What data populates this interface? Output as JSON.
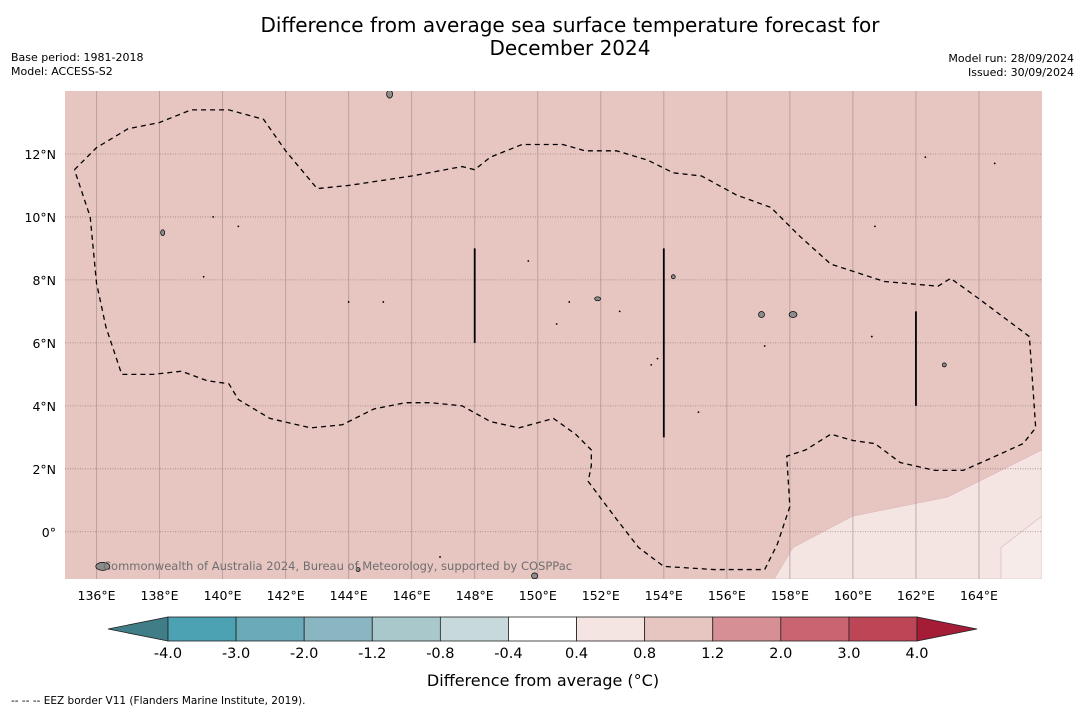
{
  "title_line1": "Difference from average sea surface temperature forecast for",
  "title_line2": "December 2024",
  "meta_left": {
    "base_period": "Base period: 1981-2018",
    "model": "Model: ACCESS-S2"
  },
  "meta_right": {
    "model_run": "Model run: 28/09/2024",
    "issued": "Issued: 30/09/2024"
  },
  "attribution": "Commonwealth of Australia 2024, Bureau of Meteorology, supported by COSPPac",
  "footer_note": "--  --  -- EEZ border V11 (Flanders Marine Institute, 2019).",
  "colorbar_label": "Difference from average (°C)",
  "colors": {
    "ocean_fill": "#e7c5c1",
    "warm_band_fill": "#f4e4e2",
    "land": "#8c8c8c",
    "colorbar": [
      "#3f7e86",
      "#4ca2b2",
      "#6aaab9",
      "#89b6c0",
      "#a9c8cc",
      "#c8d9dc",
      "#ffffff",
      "#f4e4e2",
      "#e7c5c1",
      "#d68f95",
      "#c96570",
      "#bd4656",
      "#a51c36"
    ]
  },
  "chart_data": {
    "type": "heatmap",
    "map_extent": {
      "lon": [
        135,
        166
      ],
      "lat": [
        -1.5,
        14
      ]
    },
    "x_ticks": [
      "136°E",
      "138°E",
      "140°E",
      "142°E",
      "144°E",
      "146°E",
      "148°E",
      "150°E",
      "152°E",
      "154°E",
      "156°E",
      "158°E",
      "160°E",
      "162°E",
      "164°E"
    ],
    "x_tick_values": [
      136,
      138,
      140,
      142,
      144,
      146,
      148,
      150,
      152,
      154,
      156,
      158,
      160,
      162,
      164
    ],
    "y_ticks": [
      "12°N",
      "10°N",
      "8°N",
      "6°N",
      "4°N",
      "2°N",
      "0°"
    ],
    "y_tick_values": [
      12,
      10,
      8,
      6,
      4,
      2,
      0
    ],
    "grid": true,
    "colorbar_ticks": [
      "-4.0",
      "-3.0",
      "-2.0",
      "-1.2",
      "-0.8",
      "-0.4",
      "0.4",
      "0.8",
      "1.2",
      "2.0",
      "3.0",
      "4.0"
    ],
    "colorbar_levels": [
      -4.0,
      -3.0,
      -2.0,
      -1.2,
      -0.8,
      -0.4,
      0.4,
      0.8,
      1.2,
      2.0,
      3.0,
      4.0
    ],
    "dominant_category": "0.8 to 1.2",
    "secondary_category": "0.4 to 0.8 (south-east corner)",
    "eez_border": [
      [
        135.3,
        11.5
      ],
      [
        136,
        12.2
      ],
      [
        137,
        12.8
      ],
      [
        138,
        13
      ],
      [
        139,
        13.4
      ],
      [
        140.2,
        13.4
      ],
      [
        141.3,
        13.1
      ],
      [
        142,
        12.1
      ],
      [
        143,
        10.9
      ],
      [
        144,
        11
      ],
      [
        146,
        11.3
      ],
      [
        147.6,
        11.6
      ],
      [
        148,
        11.5
      ],
      [
        148.5,
        11.9
      ],
      [
        149.5,
        12.3
      ],
      [
        150.8,
        12.3
      ],
      [
        151.5,
        12.1
      ],
      [
        152.5,
        12.1
      ],
      [
        153.5,
        11.8
      ],
      [
        154.3,
        11.4
      ],
      [
        155.2,
        11.3
      ],
      [
        156.3,
        10.7
      ],
      [
        157.4,
        10.3
      ],
      [
        158.3,
        9.4
      ],
      [
        159.3,
        8.5
      ],
      [
        161,
        7.95
      ],
      [
        162.7,
        7.8
      ],
      [
        163.1,
        8.05
      ],
      [
        164,
        7.4
      ],
      [
        165.6,
        6.2
      ],
      [
        165.8,
        3.3
      ],
      [
        165.4,
        2.8
      ],
      [
        164.3,
        2.3
      ],
      [
        163.5,
        1.95
      ],
      [
        162.6,
        1.95
      ],
      [
        161.5,
        2.2
      ],
      [
        160.7,
        2.8
      ],
      [
        160,
        2.9
      ],
      [
        159.3,
        3.1
      ],
      [
        158.5,
        2.6
      ],
      [
        157.9,
        2.4
      ],
      [
        158,
        0.8
      ],
      [
        157.6,
        -0.4
      ],
      [
        157.2,
        -1.2
      ],
      [
        155.6,
        -1.2
      ],
      [
        154,
        -1.1
      ],
      [
        153.2,
        -0.5
      ],
      [
        152.5,
        0.4
      ],
      [
        151.6,
        1.6
      ],
      [
        151.7,
        2.1
      ],
      [
        151.7,
        2.6
      ],
      [
        151.2,
        3.1
      ],
      [
        150.5,
        3.6
      ],
      [
        149.4,
        3.3
      ],
      [
        148.5,
        3.5
      ],
      [
        147.6,
        4
      ],
      [
        146.6,
        4.1
      ],
      [
        145.8,
        4.1
      ],
      [
        144.8,
        3.9
      ],
      [
        143.8,
        3.4
      ],
      [
        142.8,
        3.3
      ],
      [
        141.5,
        3.6
      ],
      [
        140.5,
        4.2
      ],
      [
        140.2,
        4.7
      ],
      [
        139.5,
        4.8
      ],
      [
        138.7,
        5.1
      ],
      [
        137.8,
        5
      ],
      [
        136.8,
        5
      ],
      [
        136.3,
        6.5
      ],
      [
        136,
        7.9
      ],
      [
        135.8,
        10
      ],
      [
        135.3,
        11.5
      ]
    ],
    "contour_lines": [
      [
        [
          148,
          9.0
        ],
        [
          148,
          6.0
        ]
      ],
      [
        [
          154,
          9.0
        ],
        [
          154,
          3.0
        ]
      ],
      [
        [
          162,
          7.0
        ],
        [
          162,
          4.0
        ]
      ]
    ]
  }
}
